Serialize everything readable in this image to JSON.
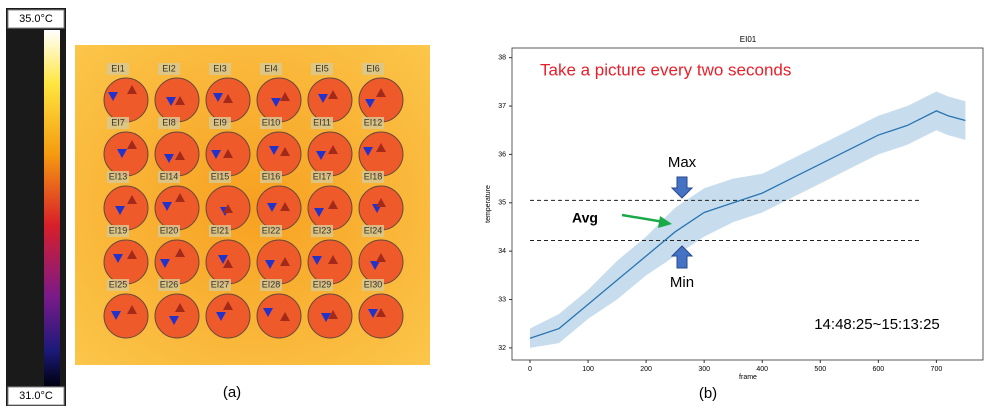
{
  "panel_a": {
    "colorbar": {
      "max": "35.0°C",
      "min": "31.0°C"
    },
    "labels": [
      "EI1",
      "EI2",
      "EI3",
      "EI4",
      "EI5",
      "EI6",
      "EI7",
      "EI8",
      "EI9",
      "EI10",
      "EI11",
      "EI12",
      "EI13",
      "EI14",
      "EI15",
      "EI16",
      "EI17",
      "EI18",
      "EI19",
      "EI20",
      "EI21",
      "EI22",
      "EI23",
      "EI24",
      "EI25",
      "EI26",
      "EI27",
      "EI28",
      "EI29",
      "EI30"
    ],
    "caption": "(a)"
  },
  "chart_data": {
    "type": "line",
    "title": "EI01",
    "x_label": "frame",
    "y_label": "temperature",
    "line": {
      "color": "#2a74b0",
      "x": [
        0,
        50,
        100,
        150,
        200,
        250,
        300,
        350,
        400,
        450,
        500,
        550,
        600,
        650,
        700,
        720,
        750
      ],
      "values": [
        32.2,
        32.4,
        32.9,
        33.4,
        33.9,
        34.4,
        34.8,
        35.0,
        35.2,
        35.5,
        35.8,
        36.1,
        36.4,
        36.6,
        36.9,
        36.8,
        36.7
      ]
    },
    "band": {
      "color": "#b9d4ea",
      "x": [
        0,
        50,
        100,
        150,
        200,
        250,
        300,
        350,
        400,
        450,
        500,
        550,
        600,
        650,
        700,
        720,
        750
      ],
      "upper": [
        32.4,
        32.7,
        33.2,
        33.8,
        34.3,
        34.9,
        35.3,
        35.5,
        35.6,
        35.9,
        36.2,
        36.5,
        36.8,
        37.0,
        37.3,
        37.2,
        37.1
      ],
      "lower": [
        32.0,
        32.1,
        32.6,
        33.0,
        33.5,
        33.9,
        34.3,
        34.6,
        34.8,
        35.1,
        35.4,
        35.7,
        36.0,
        36.2,
        36.5,
        36.4,
        36.3
      ]
    },
    "hlines": [
      35.05,
      34.22
    ],
    "xlim": [
      -31,
      782
    ],
    "ylim": [
      31.75,
      38.2
    ],
    "xticks": [
      0,
      100,
      200,
      300,
      400,
      500,
      600,
      700
    ],
    "yticks": [
      32,
      33,
      34,
      35,
      36,
      37,
      38
    ],
    "annotations": {
      "note": "Take a picture every two seconds",
      "max": "Max",
      "min": "Min",
      "avg": "Avg",
      "time": "14:48:25~15:13:25"
    },
    "caption": "(b)"
  }
}
